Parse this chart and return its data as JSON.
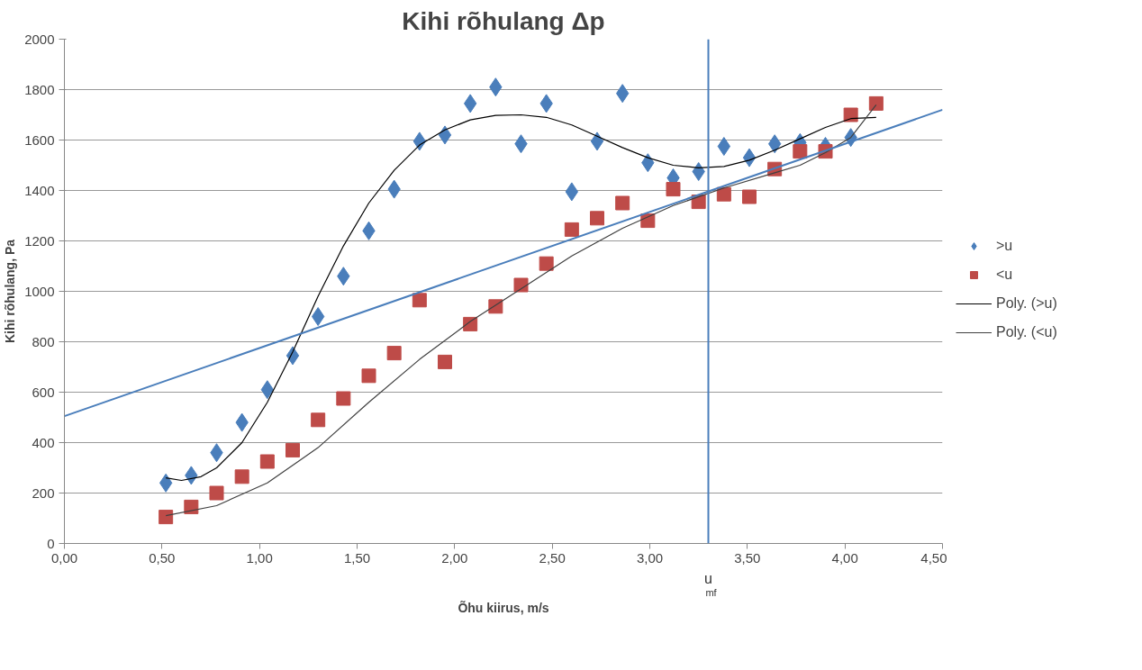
{
  "chart_data": {
    "type": "scatter",
    "title": "Kihi rõhulang Δp",
    "xlabel": "Õhu kiirus, m/s",
    "ylabel": "Kihi rõhulang, Pa",
    "xlim": [
      0,
      4.5
    ],
    "ylim": [
      0,
      2000
    ],
    "xticks": [
      {
        "value": 0,
        "label": "0,00"
      },
      {
        "value": 0.5,
        "label": "0,50"
      },
      {
        "value": 1,
        "label": "1,00"
      },
      {
        "value": 1.5,
        "label": "1,50"
      },
      {
        "value": 2,
        "label": "2,00"
      },
      {
        "value": 2.5,
        "label": "2,50"
      },
      {
        "value": 3,
        "label": "3,00"
      },
      {
        "value": 3.5,
        "label": "3,50"
      },
      {
        "value": 4,
        "label": "4,00"
      },
      {
        "value": 4.5,
        "label": "4,50"
      }
    ],
    "yticks": [
      0,
      200,
      400,
      600,
      800,
      1000,
      1200,
      1400,
      1600,
      1800,
      2000
    ],
    "grid": "y",
    "legend": "right",
    "series": [
      {
        "name": ">u",
        "type": "scatter",
        "marker": "diamond",
        "color": "#4a7ebb",
        "x": [
          0.52,
          0.65,
          0.78,
          0.91,
          1.04,
          1.17,
          1.3,
          1.43,
          1.56,
          1.69,
          1.82,
          1.95,
          2.08,
          2.21,
          2.34,
          2.47,
          2.6,
          2.73,
          2.86,
          2.99,
          3.12,
          3.25,
          3.38,
          3.51,
          3.64,
          3.77,
          3.9,
          4.03
        ],
        "values": [
          240,
          270,
          360,
          480,
          610,
          745,
          900,
          1060,
          1240,
          1405,
          1595,
          1620,
          1745,
          1810,
          1585,
          1745,
          1395,
          1595,
          1785,
          1510,
          1450,
          1475,
          1575,
          1530,
          1585,
          1590,
          1575,
          1610
        ]
      },
      {
        "name": "<u",
        "type": "scatter",
        "marker": "square",
        "color": "#be4b48",
        "x": [
          0.52,
          0.65,
          0.78,
          0.91,
          1.04,
          1.17,
          1.3,
          1.43,
          1.56,
          1.69,
          1.82,
          1.95,
          2.08,
          2.21,
          2.34,
          2.47,
          2.6,
          2.73,
          2.86,
          2.99,
          3.12,
          3.25,
          3.38,
          3.51,
          3.64,
          3.77,
          3.9,
          4.03,
          4.16
        ],
        "values": [
          105,
          145,
          200,
          265,
          325,
          370,
          490,
          575,
          665,
          755,
          965,
          720,
          870,
          940,
          1025,
          1110,
          1245,
          1290,
          1350,
          1280,
          1405,
          1355,
          1385,
          1375,
          1485,
          1555,
          1555,
          1700,
          1745
        ]
      },
      {
        "name": "Poly. (>u)",
        "type": "line",
        "line_style": "solid",
        "color": "#000000",
        "x": [
          0.52,
          0.6,
          0.7,
          0.78,
          0.91,
          1.04,
          1.17,
          1.3,
          1.43,
          1.56,
          1.69,
          1.82,
          1.95,
          2.08,
          2.21,
          2.34,
          2.47,
          2.6,
          2.73,
          2.86,
          2.99,
          3.12,
          3.25,
          3.38,
          3.51,
          3.64,
          3.77,
          3.9,
          4.03,
          4.16
        ],
        "values": [
          260,
          250,
          265,
          300,
          400,
          560,
          760,
          980,
          1180,
          1350,
          1480,
          1580,
          1640,
          1680,
          1698,
          1700,
          1690,
          1660,
          1615,
          1570,
          1530,
          1500,
          1490,
          1495,
          1520,
          1560,
          1605,
          1650,
          1685,
          1690
        ]
      },
      {
        "name": "Poly. (<u)",
        "type": "line",
        "line_style": "solid",
        "color": "#404040",
        "x": [
          0.52,
          0.78,
          1.04,
          1.3,
          1.56,
          1.82,
          2.08,
          2.34,
          2.6,
          2.86,
          3.12,
          3.38,
          3.64,
          3.77,
          3.9,
          4.03,
          4.16
        ],
        "values": [
          110,
          150,
          240,
          380,
          560,
          730,
          880,
          1010,
          1140,
          1250,
          1340,
          1410,
          1470,
          1500,
          1550,
          1610,
          1740
        ]
      },
      {
        "type": "line",
        "line_style": "solid",
        "color": "#4a7ebb",
        "x": [
          0,
          4.5
        ],
        "values": [
          505,
          1720
        ]
      }
    ],
    "ref_lines": [
      {
        "axis": "x",
        "value": 3.3,
        "label": "u$_{mf}$",
        "color": "#4a7ebb"
      }
    ]
  }
}
